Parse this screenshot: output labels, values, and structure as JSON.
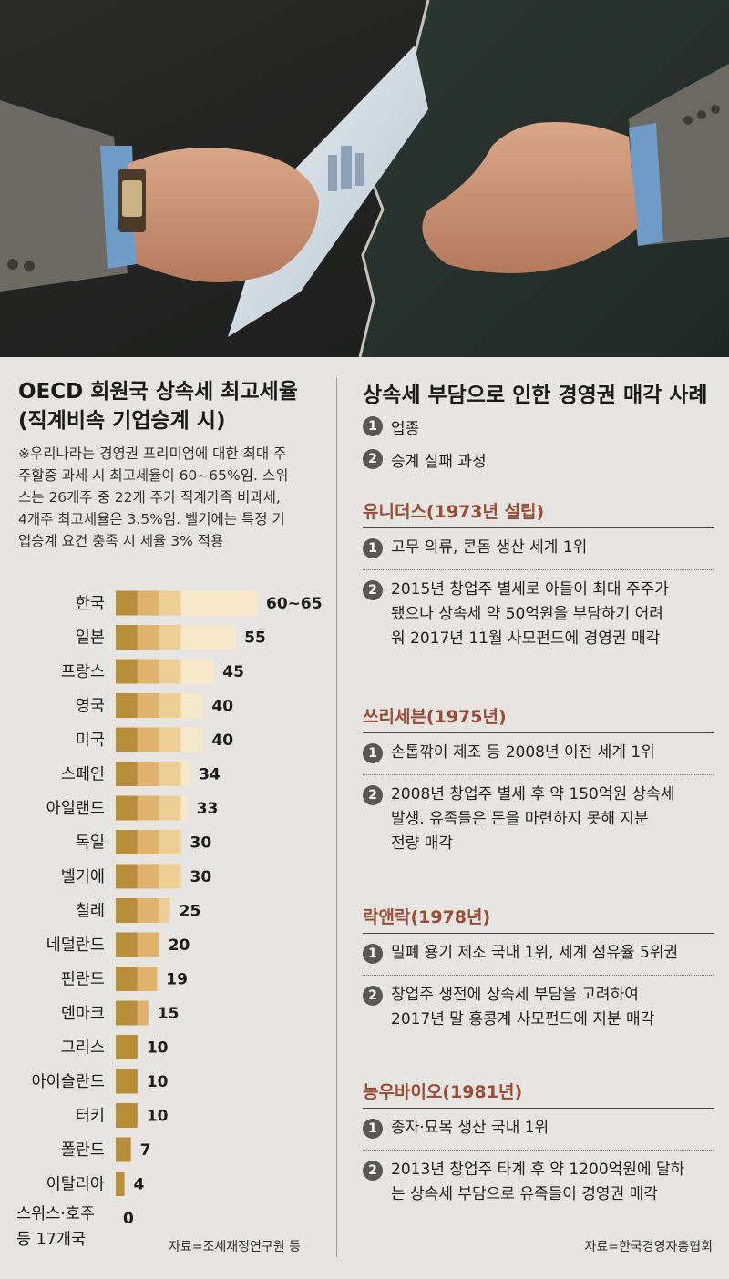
{
  "chart_data": {
    "type": "bar",
    "orientation": "horizontal",
    "title": "OECD 회원국 상속세 최고세율 (직계비속 기업승계 시)",
    "note": "※우리나라는 경영권 프리미엄에 대한 최대 주주할증 과세 시 최고세율이 60~65%임. 스위스는 26개주 중 22개 주가 직계가족 비과세, 4개주 최고세율은 3.5%임. 벨기에는 특정 기업승계 요건 충족 시 세율 3% 적용",
    "categories": [
      "한국",
      "일본",
      "프랑스",
      "영국",
      "미국",
      "스페인",
      "아일랜드",
      "독일",
      "벨기에",
      "칠레",
      "네덜란드",
      "핀란드",
      "덴마크",
      "그리스",
      "아이슬란드",
      "터키",
      "폴란드",
      "이탈리아",
      "스위스·호주 등 17개국"
    ],
    "values": [
      65,
      55,
      45,
      40,
      40,
      34,
      33,
      30,
      30,
      25,
      20,
      19,
      15,
      10,
      10,
      10,
      7,
      4,
      0
    ],
    "value_labels": [
      "60~65",
      "55",
      "45",
      "40",
      "40",
      "34",
      "33",
      "30",
      "30",
      "25",
      "20",
      "19",
      "15",
      "10",
      "10",
      "10",
      "7",
      "4",
      "0"
    ],
    "xlim": [
      0,
      65
    ],
    "grid": false,
    "colors": [
      "#b88e3a",
      "#dfb36d",
      "#eccf97",
      "#f6e9c9"
    ],
    "source": "자료=조세재정연구원 등"
  },
  "cases": {
    "title": "상속세 부담으로 인한 경영권 매각 사례",
    "legend": [
      {
        "num": "1",
        "text": "업종"
      },
      {
        "num": "2",
        "text": "승계 실패 과정"
      }
    ],
    "companies": [
      {
        "name": "유니더스(1973년 설립)",
        "industry": "고무 의류, 콘돔 생산 세계 1위",
        "process": [
          "2015년 창업주 별세로 아들이 최대 주주가",
          "됐으나 상속세 약 50억원을 부담하기 어려",
          "워 2017년 11월 사모펀드에 경영권 매각"
        ]
      },
      {
        "name": "쓰리세븐(1975년)",
        "industry": "손톱깎이 제조 등 2008년 이전 세계 1위",
        "process": [
          "2008년 창업주 별세 후 약 150억원 상속세",
          "발생. 유족들은 돈을 마련하지 못해 지분",
          "전량 매각"
        ]
      },
      {
        "name": "락앤락(1978년)",
        "industry": "밀폐 용기 제조 국내 1위, 세계 점유율 5위권",
        "process": [
          "창업주 생전에 상속세 부담을 고려하여",
          "2017년 말 홍콩계 사모펀드에 지분 매각"
        ]
      },
      {
        "name": "농우바이오(1981년)",
        "industry": "종자·묘목 생산 국내 1위",
        "process": [
          "2013년 창업주 타계 후 약 1200억원에 달하",
          "는 상속세 부담으로 유족들이 경영권 매각"
        ]
      }
    ],
    "source": "자료=한국경영자총협회"
  }
}
